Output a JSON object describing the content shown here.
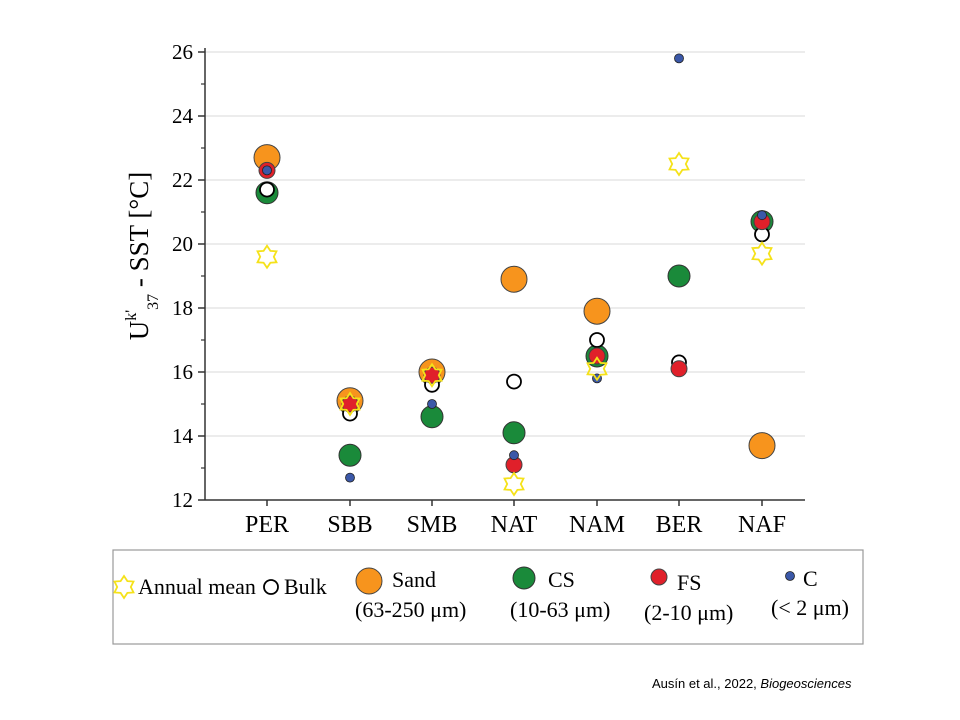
{
  "chart_data": {
    "type": "scatter",
    "title": "",
    "ylabel": "Uk'37 - SST [°C]",
    "ylim": [
      12,
      26
    ],
    "yticks": [
      12,
      14,
      16,
      18,
      20,
      22,
      24,
      26
    ],
    "grid": true,
    "categories": [
      "PER",
      "SBB",
      "SMB",
      "NAT",
      "NAM",
      "BER",
      "NAF"
    ],
    "series": [
      {
        "name": "Annual mean",
        "marker": "star",
        "color": "#f5e21a",
        "values": [
          19.6,
          15.0,
          15.9,
          12.5,
          16.1,
          22.5,
          19.7
        ]
      },
      {
        "name": "Bulk",
        "marker": "open-circle",
        "color": "#000000",
        "values": [
          21.7,
          14.7,
          15.6,
          15.7,
          17.0,
          16.3,
          20.3
        ]
      },
      {
        "name": "Sand",
        "marker": "circle-large",
        "color": "#f7941d",
        "values": [
          22.7,
          15.1,
          16.0,
          18.9,
          17.9,
          null,
          13.7
        ]
      },
      {
        "name": "CS",
        "marker": "circle-medium",
        "color": "#1a8a3a",
        "values": [
          21.6,
          13.4,
          14.6,
          14.1,
          16.5,
          19.0,
          20.7
        ]
      },
      {
        "name": "FS",
        "marker": "circle-small",
        "color": "#e0202a",
        "values": [
          22.3,
          15.0,
          15.9,
          13.1,
          16.5,
          16.1,
          20.7
        ]
      },
      {
        "name": "C",
        "marker": "circle-tiny",
        "color": "#3b58a8",
        "values": [
          22.3,
          12.7,
          15.0,
          13.4,
          15.8,
          25.8,
          20.9
        ]
      }
    ],
    "legend": {
      "items": [
        {
          "label": "Annual mean",
          "sub": ""
        },
        {
          "label": "Bulk",
          "sub": ""
        },
        {
          "label": "Sand",
          "sub": "(63-250 μm)"
        },
        {
          "label": "CS",
          "sub": "(10-63 μm)"
        },
        {
          "label": "FS",
          "sub": "(2-10 μm)"
        },
        {
          "label": "C",
          "sub": "(< 2 μm)"
        }
      ]
    }
  },
  "citation": {
    "authors": "Ausín et al., 2022, ",
    "journal": "Biogeosciences"
  }
}
